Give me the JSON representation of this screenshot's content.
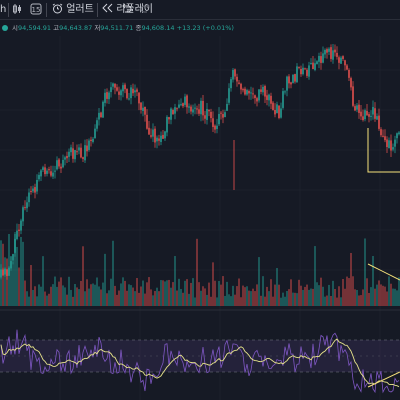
{
  "toolbar": {
    "left_fragment": "h",
    "timeframe": "15",
    "alert_label": "얼러트",
    "replay_label": "리플레이"
  },
  "ohlc": {
    "open_label": "시",
    "open_value": "94,594.91",
    "high_label": "고",
    "high_value": "94,643.87",
    "low_label": "저",
    "low_value": "94,511.71",
    "close_label": "종",
    "close_value": "94,608.14",
    "change_value": "+13.23 (+0.01%)"
  },
  "colors": {
    "background": "#161a25",
    "up": "#26a69a",
    "down": "#ef5350",
    "rsi_line": "#7e57c2",
    "rsi_ma": "#e6e38a",
    "rsi_band": "#7e57c2",
    "trendline": "#f6e27a",
    "grid": "#222633"
  },
  "chart_data": {
    "type": "candlestick",
    "price_path": [
      [
        0,
        0.02
      ],
      [
        0.02,
        0.06
      ],
      [
        0.04,
        0.2
      ],
      [
        0.06,
        0.35
      ],
      [
        0.08,
        0.4
      ],
      [
        0.1,
        0.47
      ],
      [
        0.12,
        0.48
      ],
      [
        0.14,
        0.52
      ],
      [
        0.16,
        0.53
      ],
      [
        0.18,
        0.56
      ],
      [
        0.2,
        0.55
      ],
      [
        0.22,
        0.61
      ],
      [
        0.24,
        0.67
      ],
      [
        0.26,
        0.79
      ],
      [
        0.28,
        0.86
      ],
      [
        0.3,
        0.84
      ],
      [
        0.32,
        0.82
      ],
      [
        0.34,
        0.8
      ],
      [
        0.36,
        0.72
      ],
      [
        0.38,
        0.64
      ],
      [
        0.4,
        0.62
      ],
      [
        0.42,
        0.72
      ],
      [
        0.44,
        0.76
      ],
      [
        0.46,
        0.78
      ],
      [
        0.48,
        0.75
      ],
      [
        0.5,
        0.76
      ],
      [
        0.52,
        0.73
      ],
      [
        0.54,
        0.69
      ],
      [
        0.56,
        0.71
      ],
      [
        0.58,
        0.9
      ],
      [
        0.6,
        0.85
      ],
      [
        0.62,
        0.82
      ],
      [
        0.64,
        0.81
      ],
      [
        0.66,
        0.85
      ],
      [
        0.68,
        0.78
      ],
      [
        0.7,
        0.74
      ],
      [
        0.72,
        0.87
      ],
      [
        0.74,
        0.9
      ],
      [
        0.76,
        0.93
      ],
      [
        0.78,
        0.92
      ],
      [
        0.8,
        0.95
      ],
      [
        0.82,
        0.99
      ],
      [
        0.84,
        1.0
      ],
      [
        0.86,
        0.96
      ],
      [
        0.88,
        0.82
      ],
      [
        0.9,
        0.7
      ],
      [
        0.92,
        0.76
      ],
      [
        0.94,
        0.72
      ],
      [
        0.96,
        0.64
      ],
      [
        0.98,
        0.6
      ],
      [
        1,
        0.62
      ]
    ],
    "rsi_path": [
      [
        0,
        0.55
      ],
      [
        0.02,
        0.62
      ],
      [
        0.04,
        0.74
      ],
      [
        0.06,
        0.62
      ],
      [
        0.08,
        0.45
      ],
      [
        0.1,
        0.35
      ],
      [
        0.12,
        0.42
      ],
      [
        0.14,
        0.5
      ],
      [
        0.16,
        0.38
      ],
      [
        0.18,
        0.42
      ],
      [
        0.2,
        0.55
      ],
      [
        0.22,
        0.45
      ],
      [
        0.24,
        0.6
      ],
      [
        0.26,
        0.62
      ],
      [
        0.28,
        0.4
      ],
      [
        0.3,
        0.42
      ],
      [
        0.32,
        0.35
      ],
      [
        0.34,
        0.3
      ],
      [
        0.36,
        0.2
      ],
      [
        0.38,
        0.22
      ],
      [
        0.4,
        0.42
      ],
      [
        0.42,
        0.52
      ],
      [
        0.44,
        0.5
      ],
      [
        0.46,
        0.42
      ],
      [
        0.48,
        0.38
      ],
      [
        0.5,
        0.42
      ],
      [
        0.52,
        0.48
      ],
      [
        0.54,
        0.42
      ],
      [
        0.56,
        0.55
      ],
      [
        0.58,
        0.6
      ],
      [
        0.6,
        0.5
      ],
      [
        0.62,
        0.42
      ],
      [
        0.64,
        0.45
      ],
      [
        0.66,
        0.42
      ],
      [
        0.68,
        0.3
      ],
      [
        0.7,
        0.38
      ],
      [
        0.72,
        0.52
      ],
      [
        0.74,
        0.45
      ],
      [
        0.76,
        0.48
      ],
      [
        0.78,
        0.52
      ],
      [
        0.8,
        0.6
      ],
      [
        0.82,
        0.66
      ],
      [
        0.84,
        0.68
      ],
      [
        0.86,
        0.5
      ],
      [
        0.88,
        0.28
      ],
      [
        0.9,
        0.12
      ],
      [
        0.92,
        0.22
      ],
      [
        0.94,
        0.15
      ],
      [
        0.96,
        0.1
      ],
      [
        0.98,
        0.08
      ],
      [
        1,
        0.12
      ]
    ]
  }
}
